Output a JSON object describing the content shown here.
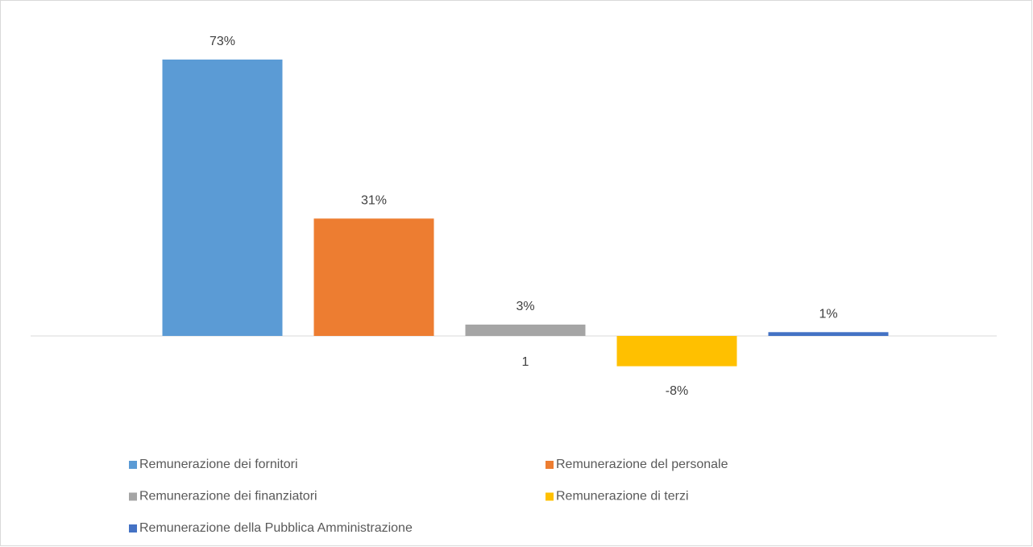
{
  "chart_data": {
    "type": "bar",
    "categories": [
      "1"
    ],
    "series": [
      {
        "name": "Remunerazione dei fornitori",
        "color": "#5b9bd5",
        "values": [
          73
        ],
        "value_labels": [
          "73%"
        ]
      },
      {
        "name": "Remunerazione del personale",
        "color": "#ed7d31",
        "values": [
          31
        ],
        "value_labels": [
          "31%"
        ]
      },
      {
        "name": "Remunerazione dei finanziatori",
        "color": "#a5a5a5",
        "values": [
          3
        ],
        "value_labels": [
          "3%"
        ]
      },
      {
        "name": "Remunerazione di terzi",
        "color": "#ffc000",
        "values": [
          -8
        ],
        "value_labels": [
          "-8%"
        ]
      },
      {
        "name": "Remunerazione della Pubblica Amministrazione",
        "color": "#4472c4",
        "values": [
          1
        ],
        "value_labels": [
          "1%"
        ]
      }
    ],
    "ylim": [
      -10,
      80
    ],
    "legend": "bottom"
  }
}
